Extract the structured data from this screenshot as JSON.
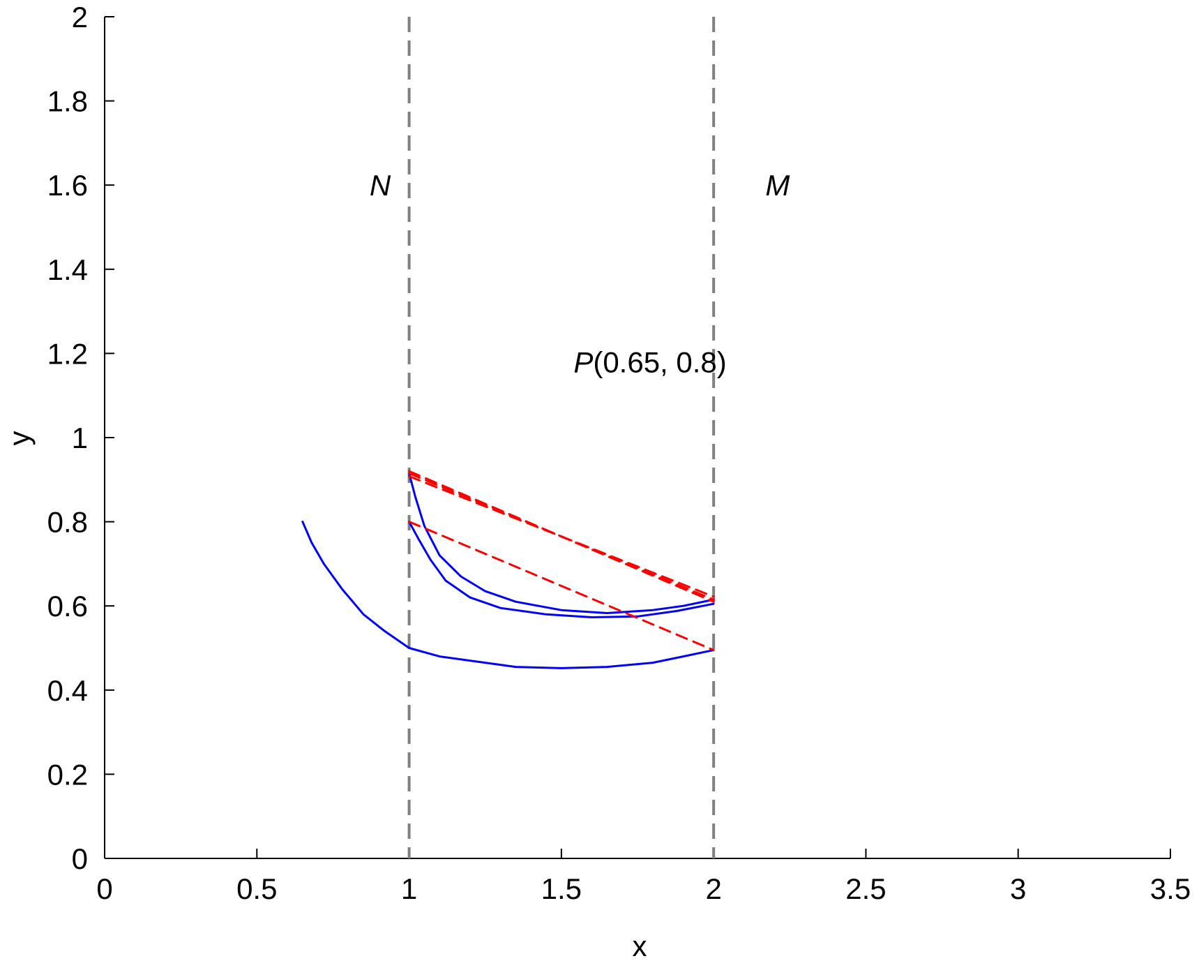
{
  "chart_data": {
    "type": "line",
    "title": "",
    "xlabel": "x",
    "ylabel": "y",
    "xlim": [
      0,
      3.5
    ],
    "ylim": [
      0,
      2
    ],
    "xticks": [
      0,
      0.5,
      1,
      1.5,
      2,
      2.5,
      3,
      3.5
    ],
    "xtick_labels": [
      "0",
      "0.5",
      "1",
      "1.5",
      "2",
      "2.5",
      "3",
      "3.5"
    ],
    "yticks": [
      0,
      0.2,
      0.4,
      0.6,
      0.8,
      1,
      1.2,
      1.4,
      1.6,
      1.8,
      2
    ],
    "ytick_labels": [
      "0",
      "0.2",
      "0.4",
      "0.6",
      "0.8",
      "1",
      "1.2",
      "1.4",
      "1.6",
      "1.8",
      "2"
    ],
    "grid": false,
    "vertical_lines": [
      {
        "x": 1,
        "style": "dashed",
        "color": "#808080"
      },
      {
        "x": 2,
        "style": "dashed",
        "color": "#808080"
      }
    ],
    "annotations": [
      {
        "text": "N",
        "italic": true,
        "x": 0.87,
        "y": 1.6
      },
      {
        "text": "M",
        "italic": true,
        "x": 2.17,
        "y": 1.6
      },
      {
        "text_italic": "P",
        "text_rest": "(0.65, 0.8)",
        "x": 1.54,
        "y": 1.18
      }
    ],
    "series": [
      {
        "style": "solid",
        "color": "#0000ff",
        "points": [
          [
            0.65,
            0.8
          ],
          [
            0.68,
            0.75
          ],
          [
            0.72,
            0.7
          ],
          [
            0.78,
            0.64
          ],
          [
            0.85,
            0.58
          ],
          [
            0.92,
            0.54
          ],
          [
            1.0,
            0.5
          ],
          [
            1.1,
            0.48
          ],
          [
            1.2,
            0.47
          ],
          [
            1.35,
            0.455
          ],
          [
            1.5,
            0.452
          ],
          [
            1.65,
            0.455
          ],
          [
            1.8,
            0.465
          ],
          [
            1.9,
            0.48
          ],
          [
            2.0,
            0.495
          ]
        ]
      },
      {
        "style": "solid",
        "color": "#0000ff",
        "points": [
          [
            1.0,
            0.8
          ],
          [
            1.03,
            0.76
          ],
          [
            1.07,
            0.71
          ],
          [
            1.12,
            0.66
          ],
          [
            1.2,
            0.62
          ],
          [
            1.3,
            0.595
          ],
          [
            1.45,
            0.58
          ],
          [
            1.6,
            0.573
          ],
          [
            1.75,
            0.575
          ],
          [
            1.88,
            0.588
          ],
          [
            2.0,
            0.605
          ]
        ]
      },
      {
        "style": "solid",
        "color": "#0000ff",
        "points": [
          [
            1.0,
            0.915
          ],
          [
            1.02,
            0.86
          ],
          [
            1.05,
            0.79
          ],
          [
            1.1,
            0.72
          ],
          [
            1.17,
            0.67
          ],
          [
            1.25,
            0.635
          ],
          [
            1.35,
            0.61
          ],
          [
            1.5,
            0.59
          ],
          [
            1.65,
            0.583
          ],
          [
            1.8,
            0.59
          ],
          [
            1.9,
            0.6
          ],
          [
            2.0,
            0.615
          ]
        ]
      },
      {
        "style": "dashed",
        "color": "#ff0000",
        "points": [
          [
            1.0,
            0.8
          ],
          [
            2.0,
            0.495
          ]
        ]
      },
      {
        "style": "dashed",
        "color": "#ff0000",
        "points": [
          [
            1.0,
            0.915
          ],
          [
            2.0,
            0.615
          ]
        ]
      },
      {
        "style": "dashed",
        "color": "#ff0000",
        "points": [
          [
            1.0,
            0.908
          ],
          [
            2.0,
            0.622
          ]
        ]
      },
      {
        "style": "dashed",
        "color": "#ff0000",
        "points": [
          [
            1.0,
            0.92
          ],
          [
            2.0,
            0.61
          ]
        ]
      }
    ]
  }
}
